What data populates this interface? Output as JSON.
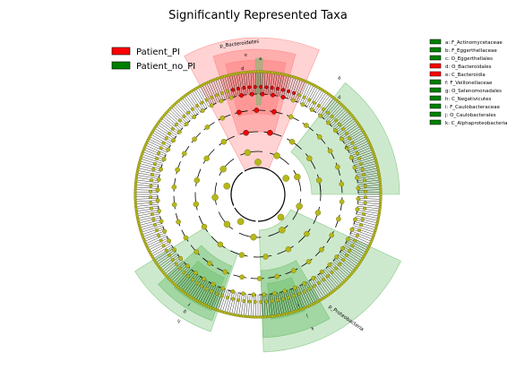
{
  "chart_data": {
    "type": "cladogram",
    "title": "Significantly Represented Taxa",
    "groups": [
      {
        "name": "Patient_PI",
        "color": "#ff0000"
      },
      {
        "name": "Patient_no_PI",
        "color": "#008000"
      }
    ],
    "legend_main_position": "top-left",
    "legend_taxa_position": "top-right",
    "taxa_legend": [
      {
        "key": "a",
        "label": "a: F_Actinomycetaceae",
        "group": "Patient_no_PI"
      },
      {
        "key": "b",
        "label": "b: F_Eggerthellaceae",
        "group": "Patient_no_PI"
      },
      {
        "key": "c",
        "label": "c: O_Eggerthellales",
        "group": "Patient_no_PI"
      },
      {
        "key": "d",
        "label": "d: O_Bacteroidales",
        "group": "Patient_PI"
      },
      {
        "key": "e",
        "label": "e: C_Bacteroidia",
        "group": "Patient_PI"
      },
      {
        "key": "f",
        "label": "f: F_Veillonellaceae",
        "group": "Patient_no_PI"
      },
      {
        "key": "g",
        "label": "g: O_Selenomonadales",
        "group": "Patient_no_PI"
      },
      {
        "key": "h",
        "label": "h: C_Negativicutes",
        "group": "Patient_no_PI"
      },
      {
        "key": "i",
        "label": "i: F_Caulobacteraceae",
        "group": "Patient_no_PI"
      },
      {
        "key": "j",
        "label": "j: O_Caulobacterales",
        "group": "Patient_no_PI"
      },
      {
        "key": "k",
        "label": "k: C_Alphaproteobacteria",
        "group": "Patient_no_PI"
      }
    ],
    "phylum_labels": [
      {
        "label": "p_Bacteroidetes",
        "group": "Patient_PI"
      },
      {
        "label": "p_Proteobacteria",
        "group": "Patient_no_PI"
      }
    ],
    "clade_letters": [
      "a",
      "b",
      "c",
      "d",
      "e",
      "f",
      "g",
      "h",
      "i",
      "j",
      "k"
    ],
    "colors": {
      "node_neutral": "#b5b81a",
      "node_neutral_stroke": "#6a6a00",
      "pi": "#ff0000",
      "no_pi": "#008000",
      "pi_shade": "#ff8080",
      "no_pi_shade": "#6fbf6f"
    }
  }
}
